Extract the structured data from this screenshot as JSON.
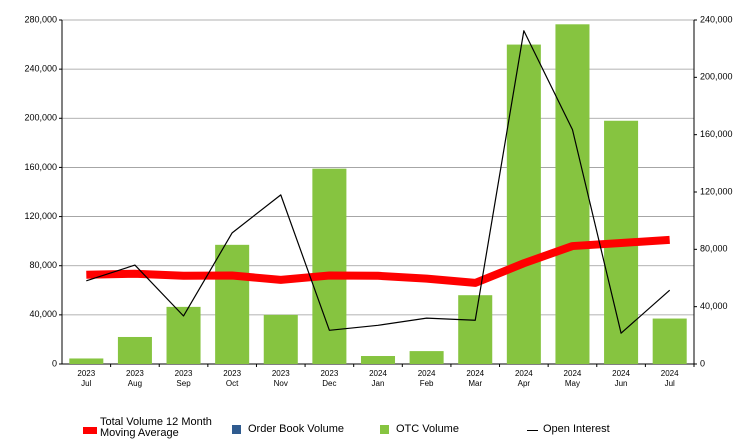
{
  "chart_data": {
    "type": "bar-line",
    "categories": [
      "2023\nJul",
      "2023\nAug",
      "2023\nSep",
      "2023\nOct",
      "2023\nNov",
      "2023\nDec",
      "2024\nJan",
      "2024\nFeb",
      "2024\nMar",
      "2024\nApr",
      "2024\nMay",
      "2024\nJun",
      "2024\nJul"
    ],
    "series": [
      {
        "name": "Total Volume 12 Month\nMoving Average",
        "type": "line",
        "color": "#ff0000",
        "axis": "y",
        "values": [
          72600,
          73500,
          71800,
          72000,
          68500,
          72000,
          71800,
          69500,
          66000,
          82000,
          96000,
          98500,
          101000
        ]
      },
      {
        "name": "Order Book Volume",
        "type": "bar",
        "color": "#2f5b8f",
        "axis": "y",
        "values": [
          0,
          0,
          0,
          0,
          0,
          0,
          0,
          0,
          0,
          0,
          0,
          0,
          0
        ]
      },
      {
        "name": "OTC Volume",
        "type": "bar",
        "color": "#86c440",
        "axis": "y",
        "values": [
          4500,
          22000,
          46500,
          97000,
          40000,
          159000,
          6500,
          10500,
          56000,
          260000,
          276500,
          198000,
          37000
        ]
      },
      {
        "name": "Open Interest",
        "type": "line",
        "color": "#000000",
        "axis": "y2",
        "values": [
          58000,
          69000,
          33500,
          91500,
          118000,
          23500,
          27000,
          32000,
          30500,
          232500,
          163500,
          21500,
          51500
        ]
      }
    ],
    "ylim": [
      0,
      280000
    ],
    "yticks": [
      0,
      {
        "value": 40000,
        "label": "40,000"
      },
      {
        "value": 80000,
        "label": "80,000"
      },
      {
        "value": 120000,
        "label": "120,000"
      },
      {
        "value": 160000,
        "label": "160,000"
      },
      {
        "value": 200000,
        "label": "200,000"
      },
      {
        "value": 240000,
        "label": "240,000"
      },
      {
        "value": 280000,
        "label": "280,000"
      }
    ],
    "y2lim": [
      0,
      240000
    ],
    "y2ticks": [
      0,
      {
        "value": 40000,
        "label": "40,000"
      },
      {
        "value": 80000,
        "label": "80,000"
      },
      {
        "value": 120000,
        "label": "120,000"
      },
      {
        "value": 160000,
        "label": "160,000"
      },
      {
        "value": 200000,
        "label": "200,000"
      },
      {
        "value": 240000,
        "label": "240,000"
      }
    ],
    "grid": true,
    "legend": "bottom"
  }
}
